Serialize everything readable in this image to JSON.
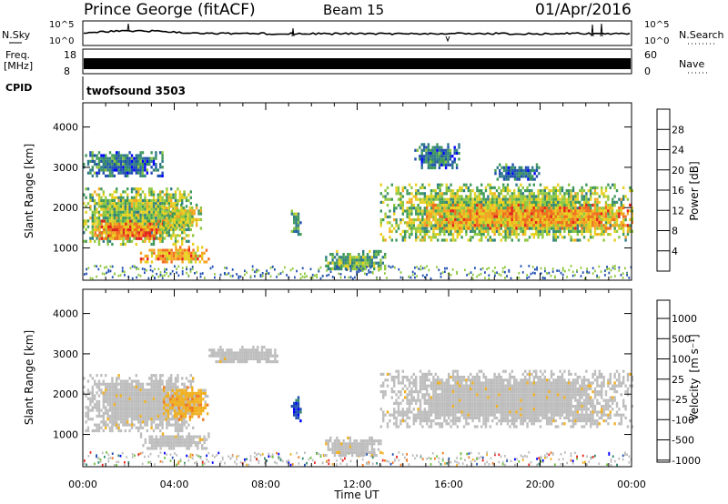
{
  "header": {
    "station": "Prince George (fitACF)",
    "beam": "Beam 15",
    "date": "01/Apr/2016"
  },
  "noise_panel": {
    "left_label": "N.Sky",
    "right_label": "N.Search",
    "ticks": [
      "10^5",
      "10^0"
    ],
    "right_ticks": [
      "10^5",
      "10^0"
    ]
  },
  "freq_panel": {
    "left_label_1": "Freq.",
    "left_label_2": "[MHz]",
    "right_label": "Nave",
    "left_ticks": [
      "18",
      "8"
    ],
    "right_ticks": [
      "60",
      "0"
    ]
  },
  "cpid": {
    "label": "CPID",
    "program": "twofsound 3503"
  },
  "colors": {
    "power_scale": [
      "#0000ff",
      "#1f4fb0",
      "#2f7a8a",
      "#3f9a5a",
      "#8fc83f",
      "#e8d020",
      "#f5a623",
      "#f26d1e",
      "#e8201e"
    ],
    "velocity_scale": [
      "#0000ff",
      "#1f4fb0",
      "#2f8a6a",
      "#6fc040",
      "#bdbdbd",
      "#f0b020",
      "#f07a1e",
      "#e8201e"
    ],
    "ground_scatter": "#bdbdbd"
  },
  "chart_data": [
    {
      "type": "heatmap",
      "name": "power",
      "title": "",
      "xlabel": "",
      "ylabel": "Slant Range [km]",
      "y_ticks": [
        1000,
        2000,
        3000,
        4000
      ],
      "x_ticks": [
        0,
        4,
        8,
        12,
        16,
        20,
        24
      ],
      "xlim": [
        0,
        24
      ],
      "ylim": [
        200,
        4600
      ],
      "colorbar": {
        "label": "Power [dB]",
        "ticks": [
          4,
          8,
          12,
          16,
          20,
          24,
          28
        ],
        "range": [
          0,
          32
        ]
      },
      "regions": [
        {
          "t": [
            0.0,
            4.8
          ],
          "r": [
            1100,
            2500
          ],
          "level": 16
        },
        {
          "t": [
            0.5,
            3.5
          ],
          "r": [
            1200,
            1700
          ],
          "level": 26
        },
        {
          "t": [
            2.5,
            5.5
          ],
          "r": [
            650,
            1050
          ],
          "level": 24
        },
        {
          "t": [
            3.5,
            5.2
          ],
          "r": [
            1500,
            2100
          ],
          "level": 18
        },
        {
          "t": [
            9.1,
            9.5
          ],
          "r": [
            1350,
            1950
          ],
          "level": 12
        },
        {
          "t": [
            10.5,
            13.2
          ],
          "r": [
            450,
            950
          ],
          "level": 14
        },
        {
          "t": [
            13.0,
            24.0
          ],
          "r": [
            1200,
            2600
          ],
          "level": 16
        },
        {
          "t": [
            15.0,
            24.0
          ],
          "r": [
            1500,
            2100
          ],
          "level": 24
        },
        {
          "t": [
            0.0,
            3.5
          ],
          "r": [
            2800,
            3400
          ],
          "level": 8
        },
        {
          "t": [
            14.5,
            16.5
          ],
          "r": [
            3000,
            3600
          ],
          "level": 8
        },
        {
          "t": [
            18.0,
            20.0
          ],
          "r": [
            2700,
            3100
          ],
          "level": 8
        }
      ]
    },
    {
      "type": "heatmap",
      "name": "velocity",
      "title": "",
      "xlabel": "Time UT",
      "ylabel": "Slant Range [km]",
      "y_ticks": [
        1000,
        2000,
        3000,
        4000
      ],
      "x_ticks": [
        0,
        4,
        8,
        12,
        16,
        20,
        24
      ],
      "x_tick_labels": [
        "00:00",
        "04:00",
        "08:00",
        "12:00",
        "16:00",
        "20:00",
        "00:00"
      ],
      "xlim": [
        0,
        24
      ],
      "ylim": [
        200,
        4600
      ],
      "colorbar": {
        "label": "Velocity",
        "unit": "[m s⁻¹]",
        "ticks": [
          "1000",
          "500",
          "100",
          "25",
          "-25",
          "-100",
          "-500",
          "-1000"
        ]
      },
      "regions": [
        {
          "t": [
            0.0,
            4.8
          ],
          "r": [
            1100,
            2500
          ],
          "level": "ground"
        },
        {
          "t": [
            2.5,
            5.5
          ],
          "r": [
            650,
            1050
          ],
          "level": "ground"
        },
        {
          "t": [
            3.5,
            5.5
          ],
          "r": [
            1400,
            2200
          ],
          "level": "-100"
        },
        {
          "t": [
            9.1,
            9.5
          ],
          "r": [
            1350,
            1950
          ],
          "level": "500"
        },
        {
          "t": [
            10.5,
            13.0
          ],
          "r": [
            450,
            950
          ],
          "level": "ground"
        },
        {
          "t": [
            13.0,
            24.0
          ],
          "r": [
            1200,
            2600
          ],
          "level": "ground"
        },
        {
          "t": [
            5.5,
            8.5
          ],
          "r": [
            2800,
            3200
          ],
          "level": "ground"
        }
      ]
    }
  ]
}
